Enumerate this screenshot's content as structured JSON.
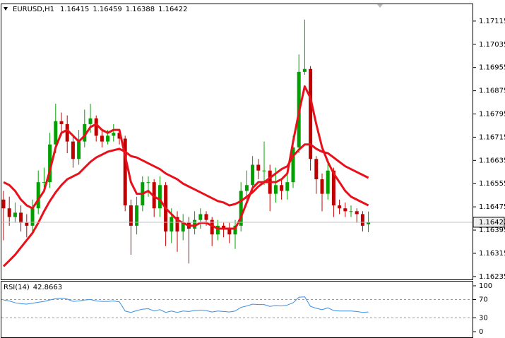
{
  "chart_data": [
    {
      "type": "candlestick",
      "title": "EURUSD,H1",
      "open": [
        1.165,
        1.1647,
        1.1644,
        1.16455,
        1.1642,
        1.1641,
        1.1647,
        1.1656,
        1.1656,
        1.1669,
        1.1677,
        1.1676,
        1.167,
        1.1664,
        1.167,
        1.1676,
        1.1678,
        1.1672,
        1.167,
        1.1672,
        1.1673,
        1.1671,
        1.1648,
        1.1641,
        1.1648,
        1.1656,
        1.1656,
        1.1647,
        1.1655,
        1.1639,
        1.1644,
        1.1639,
        1.1642,
        1.164,
        1.1643,
        1.1645,
        1.1643,
        1.1638,
        1.1641,
        1.164,
        1.1638,
        1.1641,
        1.1653,
        1.1655,
        1.1662,
        1.166,
        1.166,
        1.1652,
        1.1655,
        1.1653,
        1.1656,
        1.1668,
        1.1694,
        1.1695,
        1.1664,
        1.1657,
        1.1652,
        1.166,
        1.1648,
        1.1647,
        1.1646,
        1.1646,
        1.1645,
        1.16415
      ],
      "high": [
        1.1653,
        1.1651,
        1.1649,
        1.1648,
        1.1645,
        1.165,
        1.166,
        1.1661,
        1.1673,
        1.1683,
        1.168,
        1.1679,
        1.1672,
        1.1674,
        1.1681,
        1.1683,
        1.1679,
        1.1674,
        1.1674,
        1.1676,
        1.1674,
        1.1672,
        1.165,
        1.1651,
        1.1658,
        1.1658,
        1.1657,
        1.1658,
        1.1656,
        1.1647,
        1.1646,
        1.1645,
        1.1644,
        1.1646,
        1.1647,
        1.1646,
        1.1644,
        1.1643,
        1.1642,
        1.1642,
        1.1643,
        1.1656,
        1.166,
        1.1665,
        1.1664,
        1.167,
        1.1662,
        1.1661,
        1.1657,
        1.1659,
        1.1672,
        1.17,
        1.1712,
        1.1696,
        1.1665,
        1.1659,
        1.1664,
        1.1661,
        1.165,
        1.1649,
        1.1648,
        1.1647,
        1.1646,
        1.16459
      ],
      "low": [
        1.1636,
        1.1641,
        1.1642,
        1.1639,
        1.1637,
        1.1638,
        1.1645,
        1.1653,
        1.1654,
        1.1666,
        1.1672,
        1.1666,
        1.1661,
        1.1662,
        1.1668,
        1.1673,
        1.167,
        1.1668,
        1.1669,
        1.167,
        1.1669,
        1.1646,
        1.1631,
        1.1638,
        1.1646,
        1.1651,
        1.1644,
        1.1644,
        1.1634,
        1.1635,
        1.1632,
        1.1636,
        1.1628,
        1.1638,
        1.164,
        1.1641,
        1.1634,
        1.1636,
        1.1637,
        1.1635,
        1.1633,
        1.1639,
        1.165,
        1.1653,
        1.1657,
        1.1655,
        1.1646,
        1.1649,
        1.165,
        1.165,
        1.1654,
        1.1666,
        1.1693,
        1.166,
        1.1652,
        1.1646,
        1.165,
        1.1644,
        1.1645,
        1.1644,
        1.1644,
        1.1642,
        1.1639,
        1.16388
      ],
      "close": [
        1.1647,
        1.1644,
        1.16455,
        1.1642,
        1.1641,
        1.1647,
        1.1656,
        1.1656,
        1.1669,
        1.1677,
        1.1676,
        1.167,
        1.1664,
        1.167,
        1.1676,
        1.1678,
        1.1672,
        1.167,
        1.1672,
        1.1673,
        1.1671,
        1.1648,
        1.1641,
        1.1648,
        1.1656,
        1.1656,
        1.1647,
        1.1655,
        1.1639,
        1.1644,
        1.1639,
        1.1642,
        1.164,
        1.1643,
        1.1645,
        1.1643,
        1.1638,
        1.1641,
        1.164,
        1.1638,
        1.1641,
        1.1653,
        1.1655,
        1.1662,
        1.166,
        1.166,
        1.1652,
        1.1655,
        1.1653,
        1.1656,
        1.1668,
        1.1694,
        1.1695,
        1.1664,
        1.1657,
        1.1652,
        1.166,
        1.1648,
        1.1647,
        1.1646,
        1.1646,
        1.1645,
        1.1641,
        1.16422
      ],
      "up_color": "#00a000",
      "down_color": "#c00000",
      "overlays": [
        {
          "color": "#e8101a",
          "values": [
            1.1656,
            1.1655,
            1.1653,
            1.165,
            1.1648,
            1.1647,
            1.165,
            1.1653,
            1.166,
            1.1668,
            1.1673,
            1.1674,
            1.1672,
            1.167,
            1.1672,
            1.1675,
            1.1676,
            1.1674,
            1.1673,
            1.1674,
            1.1674,
            1.1665,
            1.1656,
            1.1652,
            1.1652,
            1.1653,
            1.1651,
            1.165,
            1.1647,
            1.1645,
            1.1643,
            1.1642,
            1.1641,
            1.1641,
            1.1642,
            1.1642,
            1.1641,
            1.164,
            1.164,
            1.164,
            1.164,
            1.1644,
            1.1649,
            1.1654,
            1.1656,
            1.1656,
            1.1656,
            1.1656,
            1.1657,
            1.1659,
            1.167,
            1.168,
            1.1689,
            1.1685,
            1.1676,
            1.1668,
            1.1663,
            1.1659,
            1.1656,
            1.1653,
            1.1651,
            1.165,
            1.1649,
            1.1648
          ]
        },
        {
          "color": "#e8101a",
          "values": [
            1.1627,
            1.1629,
            1.1631,
            1.16335,
            1.1636,
            1.16385,
            1.1642,
            1.1646,
            1.16495,
            1.16525,
            1.1655,
            1.1657,
            1.1658,
            1.1659,
            1.1661,
            1.1663,
            1.16645,
            1.16655,
            1.16665,
            1.1667,
            1.16675,
            1.16665,
            1.1665,
            1.16645,
            1.16635,
            1.16625,
            1.16615,
            1.16605,
            1.1659,
            1.1658,
            1.1657,
            1.16555,
            1.16545,
            1.16535,
            1.16525,
            1.16515,
            1.16505,
            1.16495,
            1.1649,
            1.1648,
            1.16485,
            1.16495,
            1.1651,
            1.16525,
            1.16545,
            1.1656,
            1.16575,
            1.1659,
            1.16605,
            1.16615,
            1.1665,
            1.16672,
            1.1669,
            1.1669,
            1.16675,
            1.16665,
            1.1666,
            1.16645,
            1.1663,
            1.16615,
            1.16605,
            1.16595,
            1.16585,
            1.16575
          ]
        }
      ],
      "ylim": [
        1.16225,
        1.17173
      ],
      "yticks": [
        1.16235,
        1.16315,
        1.16395,
        1.16475,
        1.16555,
        1.16635,
        1.16715,
        1.16795,
        1.16875,
        1.16955,
        1.17035,
        1.17115
      ]
    },
    {
      "type": "line",
      "title": "RSI(14)",
      "color": "#3a8ee6",
      "values": [
        69,
        67,
        63,
        61,
        60,
        62,
        64,
        66,
        69,
        72,
        73,
        71,
        66,
        67,
        69,
        70,
        67,
        66,
        66,
        67,
        65,
        45,
        42,
        46,
        49,
        50,
        45,
        48,
        42,
        45,
        42,
        45,
        44,
        46,
        47,
        46,
        43,
        45,
        44,
        43,
        45,
        53,
        56,
        60,
        59,
        59,
        55,
        57,
        56,
        58,
        63,
        75,
        76,
        55,
        51,
        48,
        52,
        46,
        45,
        45,
        45,
        44,
        42,
        42.8663
      ],
      "ylim": [
        -12.3,
        110.8
      ],
      "yticks": [
        0,
        30,
        70,
        100
      ],
      "levels": [
        30,
        70
      ]
    }
  ]
}
